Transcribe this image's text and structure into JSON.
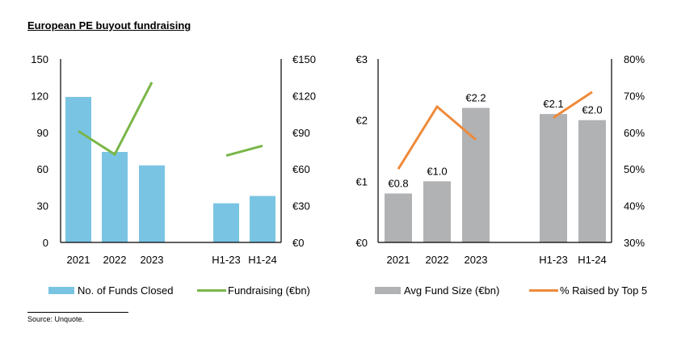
{
  "title": "European PE buyout fundraising",
  "source": "Source:  Unquote.",
  "colors": {
    "funds_bar": "#7ac4e3",
    "fundraising_line": "#7ab648",
    "avg_bar": "#b1b2b4",
    "top5_line": "#ee8a3a"
  },
  "chart_data": [
    {
      "type": "bar",
      "title": "",
      "categories": [
        "2021",
        "2022",
        "2023",
        "",
        "H1-23",
        "H1-24"
      ],
      "left_axis": {
        "ylim": [
          0,
          150
        ],
        "ticks": [
          "0",
          "30",
          "60",
          "90",
          "120",
          "150"
        ],
        "tick_values": [
          0,
          30,
          60,
          90,
          120,
          150
        ]
      },
      "right_axis": {
        "ylim": [
          0,
          150
        ],
        "ticks": [
          "€0",
          "€30",
          "€60",
          "€90",
          "€120",
          "€150"
        ],
        "tick_values": [
          0,
          30,
          60,
          90,
          120,
          150
        ]
      },
      "grid": false,
      "legend": "bottom",
      "series": [
        {
          "name": "No. of Funds Closed",
          "kind": "bar",
          "axis": "left",
          "values": [
            119,
            74,
            63,
            null,
            32,
            38
          ]
        },
        {
          "name": "Fundraising (€bn)",
          "kind": "line",
          "axis": "right",
          "segments": [
            [
              0,
              1,
              2
            ],
            [
              4,
              5
            ]
          ],
          "values": [
            91,
            72,
            131,
            null,
            71,
            79
          ]
        }
      ]
    },
    {
      "type": "bar",
      "title": "",
      "categories": [
        "2021",
        "2022",
        "2023",
        "",
        "H1-23",
        "H1-24"
      ],
      "left_axis": {
        "ylim": [
          0,
          3
        ],
        "ticks": [
          "€0",
          "€1",
          "€2",
          "€3"
        ],
        "tick_values": [
          0,
          1,
          2,
          3
        ]
      },
      "right_axis": {
        "ylim": [
          30,
          80
        ],
        "ticks": [
          "30%",
          "40%",
          "50%",
          "60%",
          "70%",
          "80%"
        ],
        "tick_values": [
          30,
          40,
          50,
          60,
          70,
          80
        ]
      },
      "grid": false,
      "legend": "bottom",
      "series": [
        {
          "name": "Avg Fund Size (€bn)",
          "kind": "bar",
          "axis": "left",
          "values": [
            0.8,
            1.0,
            2.2,
            null,
            2.1,
            2.0
          ],
          "data_labels": [
            "€0.8",
            "€1.0",
            "€2.2",
            "",
            "€2.1",
            "€2.0"
          ]
        },
        {
          "name": "% Raised by Top 5",
          "kind": "line",
          "axis": "right",
          "segments": [
            [
              0,
              1,
              2
            ],
            [
              4,
              5
            ]
          ],
          "values": [
            50,
            67,
            58,
            null,
            64,
            71
          ]
        }
      ]
    }
  ]
}
